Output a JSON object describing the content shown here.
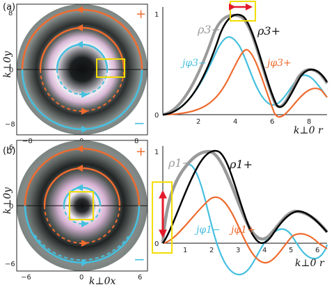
{
  "colors": {
    "orange": "#ef6b2e",
    "cyan": "#46c0df",
    "gray": "#9a9a9a",
    "black": "#000000",
    "highlight": "#f2dd00",
    "red_arrow": "#e41a2a",
    "map_outer": "#808a87",
    "map_dark": "#1a1d1d"
  },
  "panel_a": {
    "label": "(a)",
    "map": {
      "y_label": "k⊥0y",
      "y_ticks": [
        "8",
        "0",
        "−8"
      ],
      "x_ticks": [
        "−8",
        "0",
        "8"
      ],
      "plus": "+",
      "minus": "−"
    },
    "plot": {
      "y_ticks": [
        "0",
        "1"
      ],
      "x_ticks": [
        "2",
        "4",
        "6",
        "8"
      ],
      "xlabel": "k⊥0 r",
      "labels": {
        "rho_minus": "ρ3−",
        "rho_plus": "ρ3+",
        "j_minus": "jφ3−",
        "j_plus": "jφ3+"
      }
    }
  },
  "panel_b": {
    "label": "(b)",
    "map": {
      "y_label": "k⊥0y",
      "x_label": "k⊥0x",
      "y_ticks": [
        "6",
        "0",
        "−6"
      ],
      "x_ticks": [
        "−6",
        "0",
        "6"
      ],
      "plus": "+",
      "minus": "−"
    },
    "plot": {
      "y_ticks": [
        "0",
        "1"
      ],
      "x_ticks": [
        "1",
        "2",
        "3",
        "4",
        "5",
        "6"
      ],
      "xlabel": "k⊥0 r",
      "labels": {
        "rho_minus": "ρ1−",
        "rho_plus": "ρ1+",
        "j_minus": "jφ1−",
        "j_plus": "jφ1+"
      }
    }
  }
}
